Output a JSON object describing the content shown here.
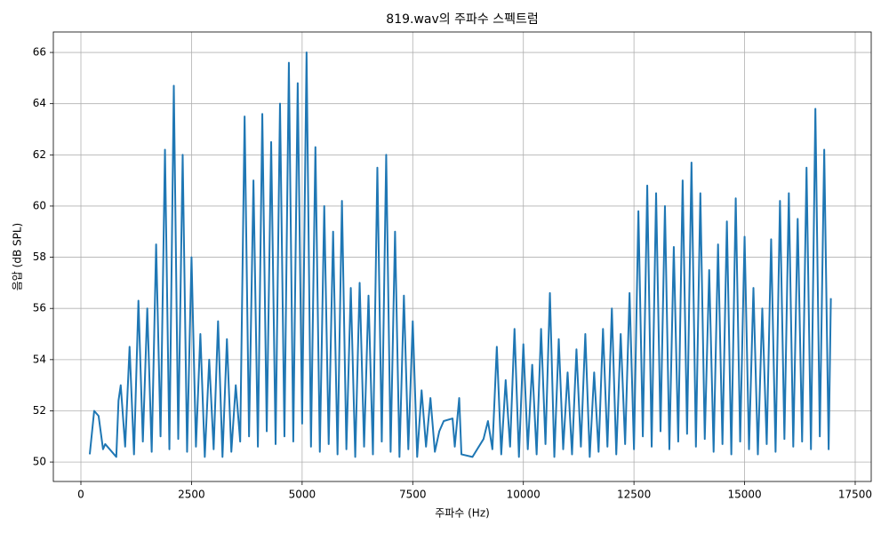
{
  "chart_data": {
    "type": "line",
    "title": "819.wav의 주파수 스펙트럼",
    "xlabel": "주파수 (Hz)",
    "ylabel": "음압 (dB SPL)",
    "x": [
      200,
      300,
      400,
      500,
      550,
      800,
      850,
      900,
      1000,
      1100,
      1200,
      1300,
      1400,
      1500,
      1600,
      1700,
      1800,
      1900,
      2000,
      2100,
      2200,
      2300,
      2400,
      2500,
      2600,
      2700,
      2800,
      2900,
      3000,
      3100,
      3200,
      3300,
      3400,
      3500,
      3600,
      3700,
      3800,
      3900,
      4000,
      4100,
      4200,
      4300,
      4400,
      4500,
      4600,
      4700,
      4800,
      4900,
      5000,
      5100,
      5200,
      5300,
      5400,
      5500,
      5600,
      5700,
      5800,
      5900,
      6000,
      6100,
      6200,
      6300,
      6400,
      6500,
      6600,
      6700,
      6800,
      6900,
      7000,
      7100,
      7200,
      7300,
      7400,
      7500,
      7600,
      7700,
      7800,
      7900,
      8000,
      8100,
      8200,
      8400,
      8450,
      8550,
      8600,
      8850,
      9100,
      9200,
      9300,
      9400,
      9500,
      9600,
      9700,
      9800,
      9900,
      10000,
      10100,
      10200,
      10300,
      10400,
      10500,
      10600,
      10700,
      10800,
      10900,
      11000,
      11100,
      11200,
      11300,
      11400,
      11500,
      11600,
      11700,
      11800,
      11900,
      12000,
      12100,
      12200,
      12300,
      12400,
      12500,
      12600,
      12700,
      12800,
      12900,
      13000,
      13100,
      13200,
      13300,
      13400,
      13500,
      13600,
      13700,
      13800,
      13900,
      14000,
      14100,
      14200,
      14300,
      14400,
      14500,
      14600,
      14700,
      14800,
      14900,
      15000,
      15100,
      15200,
      15300,
      15400,
      15500,
      15600,
      15700,
      15800,
      15900,
      16000,
      16100,
      16200,
      16300,
      16400,
      16500,
      16600,
      16700,
      16800,
      16900,
      16950
    ],
    "values": [
      50.3,
      52.0,
      51.8,
      50.5,
      50.7,
      50.2,
      52.4,
      53.0,
      50.6,
      54.5,
      50.3,
      56.3,
      50.8,
      56.0,
      50.4,
      58.5,
      51.0,
      62.2,
      50.5,
      64.7,
      50.9,
      62.0,
      50.4,
      58.0,
      50.6,
      55.0,
      50.2,
      54.0,
      50.5,
      55.5,
      50.2,
      54.8,
      50.4,
      53.0,
      50.8,
      63.5,
      51.0,
      61.0,
      50.6,
      63.6,
      51.2,
      62.5,
      50.7,
      64.0,
      51.0,
      65.6,
      50.8,
      64.8,
      51.5,
      66.0,
      50.6,
      62.3,
      50.4,
      60.0,
      50.7,
      59.0,
      50.3,
      60.2,
      50.5,
      56.8,
      50.2,
      57.0,
      50.6,
      56.5,
      50.3,
      61.5,
      50.8,
      62.0,
      50.4,
      59.0,
      50.2,
      56.5,
      50.5,
      55.5,
      50.2,
      52.8,
      50.6,
      52.5,
      50.4,
      51.2,
      51.6,
      51.7,
      50.6,
      52.5,
      50.3,
      50.2,
      50.9,
      51.6,
      50.5,
      54.5,
      50.3,
      53.2,
      50.6,
      55.2,
      50.2,
      54.6,
      50.5,
      53.8,
      50.3,
      55.2,
      50.7,
      56.6,
      50.2,
      54.8,
      50.5,
      53.5,
      50.3,
      54.4,
      50.6,
      55.0,
      50.2,
      53.5,
      50.4,
      55.2,
      50.6,
      56.0,
      50.3,
      55.0,
      50.7,
      56.6,
      50.5,
      59.8,
      51.0,
      60.8,
      50.6,
      60.5,
      51.2,
      60.0,
      50.5,
      58.4,
      50.8,
      61.0,
      51.1,
      61.7,
      50.6,
      60.5,
      50.9,
      57.5,
      50.4,
      58.5,
      50.7,
      59.4,
      50.3,
      60.3,
      50.8,
      58.8,
      50.5,
      56.8,
      50.3,
      56.0,
      50.7,
      58.7,
      50.4,
      60.2,
      50.9,
      60.5,
      50.6,
      59.5,
      50.8,
      61.5,
      50.5,
      63.8,
      51.0,
      62.2,
      50.5,
      56.4
    ],
    "color": "#1f77b4",
    "grid": true,
    "xlim": [
      -623,
      17862
    ],
    "xticks": [
      0,
      2500,
      5000,
      7500,
      10000,
      12500,
      15000,
      17500
    ],
    "ylim": [
      49.24,
      66.8
    ],
    "yticks": [
      50,
      52,
      54,
      56,
      58,
      60,
      62,
      64,
      66
    ]
  }
}
